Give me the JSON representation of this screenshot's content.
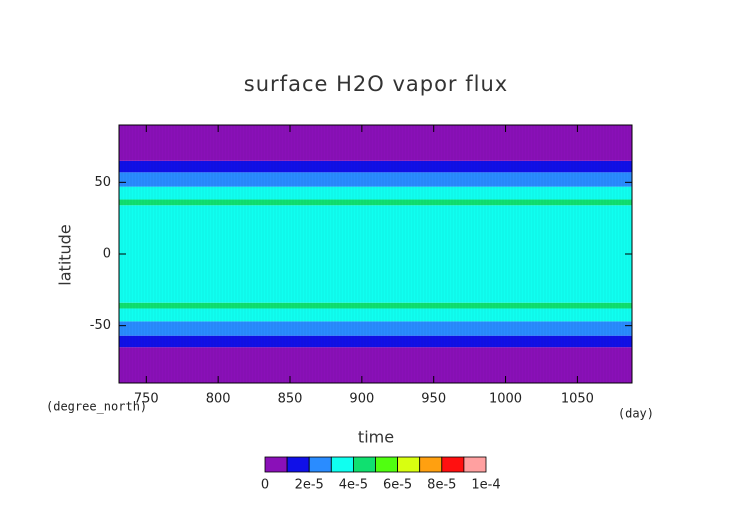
{
  "chart_data": {
    "type": "heatmap",
    "title": "surface H2O vapor flux",
    "xlabel": "time",
    "ylabel": "latitude",
    "xunit": "(day)",
    "yunit": "(degree_north)",
    "xlim": [
      731,
      1088
    ],
    "ylim": [
      -90,
      90
    ],
    "xticks": [
      750,
      800,
      850,
      900,
      950,
      1000,
      1050
    ],
    "yticks": [
      -50,
      0,
      50
    ],
    "y_edges": [
      -90,
      -65,
      -57,
      -47,
      -38,
      -34,
      34,
      38,
      47,
      57,
      65,
      90
    ],
    "values": [
      5e-06,
      1.5e-05,
      2.5e-05,
      3.5e-05,
      4.2e-05,
      3.5e-05,
      4.2e-05,
      3.5e-05,
      2.5e-05,
      1.5e-05,
      5e-06
    ],
    "colorbar": {
      "levels": [
        0,
        1e-05,
        2e-05,
        3e-05,
        4e-05,
        5e-05,
        6e-05,
        7e-05,
        8e-05,
        9e-05,
        0.0001
      ],
      "colors": [
        "#8a10b8",
        "#1010e8",
        "#2a8cff",
        "#10fff0",
        "#10e070",
        "#50ff10",
        "#d8ff10",
        "#ffa010",
        "#ff1010",
        "#ffa0a0"
      ],
      "ticks": [
        0,
        {
          "value": 2e-05,
          "label": "2e-5"
        },
        {
          "value": 4e-05,
          "label": "4e-5"
        },
        {
          "value": 6e-05,
          "label": "6e-5"
        },
        {
          "value": 8e-05,
          "label": "8e-5"
        },
        {
          "value": 0.0001,
          "label": "1e-4"
        }
      ]
    }
  }
}
